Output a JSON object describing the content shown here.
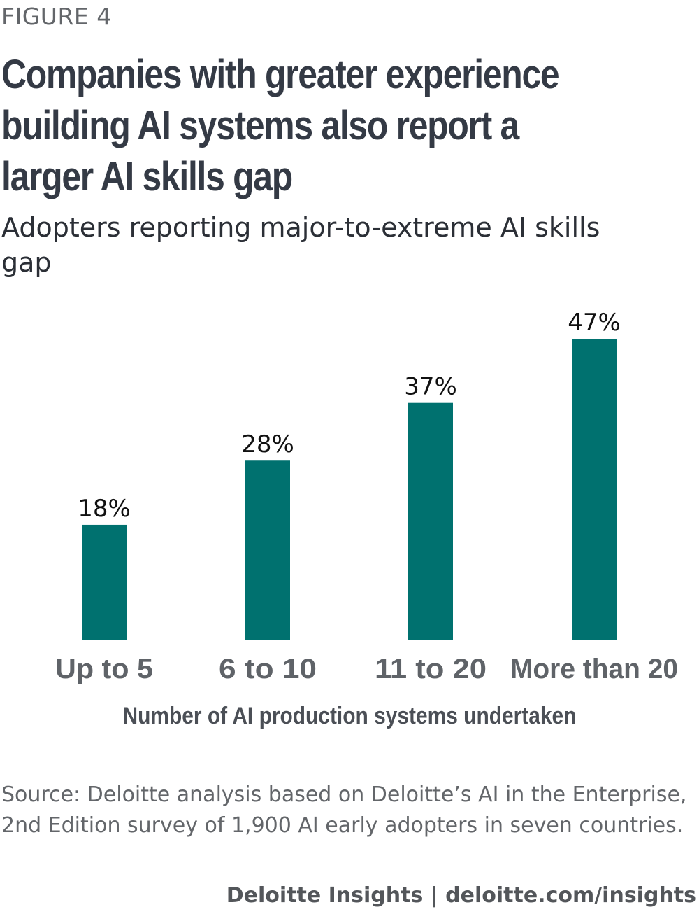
{
  "figure_label": "FIGURE 4",
  "title": "Companies with greater experience building AI systems also report a larger AI skills gap",
  "subtitle": "Adopters reporting major-to-extreme AI skills gap",
  "source": "Source: Deloitte analysis based on Deloitte’s AI in the Enterprise, 2nd Edition survey of 1,900 AI early adopters in seven countries.",
  "footer": "Deloitte Insights | deloitte.com/insights",
  "colors": {
    "bar": "#00716f",
    "title": "#343a45",
    "axis_text": "#5f6368"
  },
  "chart_data": {
    "type": "bar",
    "title": "Companies with greater experience building AI systems also report a larger AI skills gap",
    "subtitle": "Adopters reporting major-to-extreme AI skills gap",
    "categories": [
      "Up to 5",
      "6 to 10",
      "11 to 20",
      "More than 20"
    ],
    "values": [
      18,
      28,
      37,
      47
    ],
    "value_labels": [
      "18%",
      "28%",
      "37%",
      "47%"
    ],
    "xlabel": "Number of AI production systems undertaken",
    "ylabel": "",
    "ylim": [
      0,
      47
    ],
    "unit": "%",
    "grid": false,
    "legend": "none"
  }
}
